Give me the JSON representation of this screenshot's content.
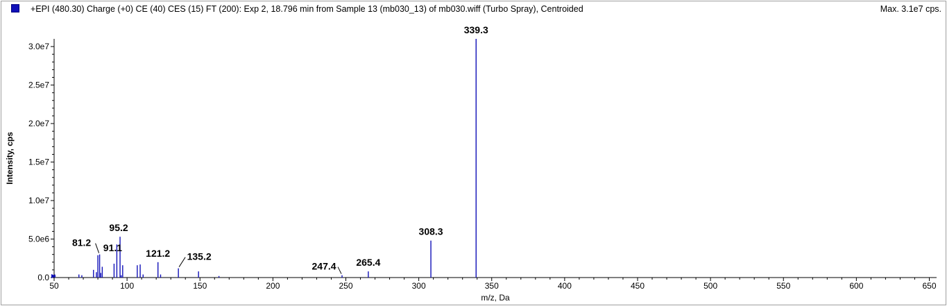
{
  "header": {
    "title": "+EPI (480.30) Charge (+0) CE (40) CES (15) FT (200): Exp 2, 18.796 min from Sample 13 (mb030_13) of mb030.wiff (Turbo Spray), Centroided",
    "max_label": "Max. 3.1e7 cps."
  },
  "colors": {
    "series": "#1010b8",
    "axis": "#000000"
  },
  "chart_data": {
    "type": "bar",
    "title": "",
    "xlabel": "m/z, Da",
    "ylabel": "Intensity, cps",
    "xlim": [
      50,
      655
    ],
    "ylim": [
      0,
      31000000
    ],
    "x_ticks": [
      50,
      100,
      150,
      200,
      250,
      300,
      350,
      400,
      450,
      500,
      550,
      600,
      650
    ],
    "x_tick_labels": [
      "50",
      "100",
      "150",
      "200",
      "250",
      "300",
      "350",
      "400",
      "450",
      "500",
      "550",
      "600",
      "650"
    ],
    "y_ticks": [
      0,
      5000000,
      10000000,
      15000000,
      20000000,
      25000000,
      30000000
    ],
    "y_tick_labels": [
      "0.0",
      "5.0e6",
      "1.0e7",
      "1.5e7",
      "2.0e7",
      "2.5e7",
      "3.0e7"
    ],
    "peaks": [
      {
        "mz": 50.5,
        "intensity": 400000
      },
      {
        "mz": 67.0,
        "intensity": 400000
      },
      {
        "mz": 69.0,
        "intensity": 300000
      },
      {
        "mz": 77.0,
        "intensity": 1000000
      },
      {
        "mz": 79.0,
        "intensity": 700000
      },
      {
        "mz": 80.0,
        "intensity": 2900000
      },
      {
        "mz": 81.2,
        "intensity": 3000000
      },
      {
        "mz": 82.0,
        "intensity": 600000
      },
      {
        "mz": 83.0,
        "intensity": 1400000
      },
      {
        "mz": 91.1,
        "intensity": 1800000
      },
      {
        "mz": 93.0,
        "intensity": 4300000
      },
      {
        "mz": 95.2,
        "intensity": 5300000
      },
      {
        "mz": 96.0,
        "intensity": 300000
      },
      {
        "mz": 97.0,
        "intensity": 1600000
      },
      {
        "mz": 107.0,
        "intensity": 1600000
      },
      {
        "mz": 109.0,
        "intensity": 1700000
      },
      {
        "mz": 111.0,
        "intensity": 400000
      },
      {
        "mz": 121.2,
        "intensity": 2000000
      },
      {
        "mz": 123.0,
        "intensity": 400000
      },
      {
        "mz": 135.2,
        "intensity": 1200000
      },
      {
        "mz": 149.0,
        "intensity": 800000
      },
      {
        "mz": 163.0,
        "intensity": 200000
      },
      {
        "mz": 247.4,
        "intensity": 300000
      },
      {
        "mz": 265.4,
        "intensity": 800000
      },
      {
        "mz": 308.3,
        "intensity": 4800000
      },
      {
        "mz": 339.3,
        "intensity": 31000000
      }
    ],
    "labels": [
      {
        "text": "339.3",
        "mz": 339.3,
        "intensity": 31000000,
        "dx": 0,
        "dy": -8,
        "anchor": "middle",
        "leader": false
      },
      {
        "text": "308.3",
        "mz": 308.3,
        "intensity": 4800000,
        "dx": 0,
        "dy": -8,
        "anchor": "middle",
        "leader": false
      },
      {
        "text": "95.2",
        "mz": 95.2,
        "intensity": 5300000,
        "dx": -2,
        "dy": -8,
        "anchor": "middle",
        "leader": false
      },
      {
        "text": "81.2",
        "mz": 81.2,
        "intensity": 3000000,
        "dx": -26,
        "dy": -12,
        "anchor": "middle",
        "leader": true
      },
      {
        "text": "91.1",
        "mz": 91.1,
        "intensity": 1800000,
        "dx": -2,
        "dy": -18,
        "anchor": "middle",
        "leader": false
      },
      {
        "text": "121.2",
        "mz": 121.2,
        "intensity": 2000000,
        "dx": 0,
        "dy": -8,
        "anchor": "middle",
        "leader": false
      },
      {
        "text": "135.2",
        "mz": 135.2,
        "intensity": 1200000,
        "dx": 30,
        "dy": -12,
        "anchor": "middle",
        "leader": true
      },
      {
        "text": "247.4",
        "mz": 247.4,
        "intensity": 300000,
        "dx": -26,
        "dy": -8,
        "anchor": "middle",
        "leader": true
      },
      {
        "text": "265.4",
        "mz": 265.4,
        "intensity": 800000,
        "dx": 0,
        "dy": -8,
        "anchor": "middle",
        "leader": false
      }
    ]
  }
}
